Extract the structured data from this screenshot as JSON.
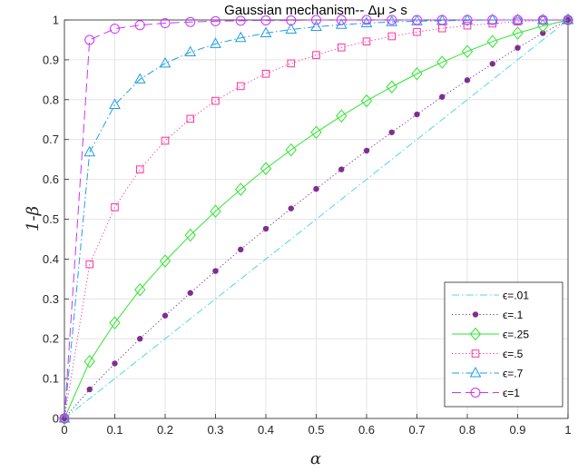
{
  "chart_data": {
    "type": "line",
    "title": "Gaussian mechanism-- Δμ > s",
    "xlabel": "α",
    "ylabel": "1-β",
    "xlim": [
      0,
      1
    ],
    "ylim": [
      0,
      1
    ],
    "xticks": [
      "0",
      "0.1",
      "0.2",
      "0.3",
      "0.4",
      "0.5",
      "0.6",
      "0.7",
      "0.8",
      "0.9",
      "1"
    ],
    "yticks": [
      "0",
      "0.1",
      "0.2",
      "0.3",
      "0.4",
      "0.5",
      "0.6",
      "0.7",
      "0.8",
      "0.9",
      "1"
    ],
    "grid": true,
    "legend_position": "bottom-right",
    "x": [
      0,
      0.05,
      0.1,
      0.15,
      0.2,
      0.25,
      0.3,
      0.35,
      0.4,
      0.45,
      0.5,
      0.55,
      0.6,
      0.65,
      0.7,
      0.75,
      0.8,
      0.85,
      0.9,
      0.95,
      1
    ],
    "series": [
      {
        "name": "ϵ=.01",
        "color": "#4dd8e6",
        "dash": "dashdot",
        "marker": "none",
        "values": [
          0,
          0.05,
          0.1,
          0.15,
          0.2,
          0.25,
          0.3,
          0.35,
          0.4,
          0.45,
          0.5,
          0.55,
          0.6,
          0.65,
          0.7,
          0.75,
          0.8,
          0.85,
          0.9,
          0.95,
          1
        ]
      },
      {
        "name": "ϵ=.1",
        "color": "#7e2f8e",
        "dash": "dotted",
        "marker": "dot",
        "values": [
          0,
          0.073,
          0.138,
          0.2,
          0.258,
          0.315,
          0.37,
          0.424,
          0.476,
          0.527,
          0.576,
          0.625,
          0.672,
          0.718,
          0.763,
          0.807,
          0.849,
          0.89,
          0.93,
          0.967,
          1
        ]
      },
      {
        "name": "ϵ=.25",
        "color": "#2ee62e",
        "dash": "solid",
        "marker": "diamond",
        "values": [
          0,
          0.143,
          0.24,
          0.323,
          0.395,
          0.46,
          0.52,
          0.575,
          0.627,
          0.674,
          0.718,
          0.759,
          0.797,
          0.832,
          0.865,
          0.894,
          0.921,
          0.946,
          0.967,
          0.985,
          1
        ]
      },
      {
        "name": "ϵ=.5",
        "color": "#ff3399",
        "dash": "dotted",
        "marker": "square",
        "values": [
          0,
          0.387,
          0.53,
          0.625,
          0.697,
          0.752,
          0.797,
          0.834,
          0.865,
          0.891,
          0.912,
          0.931,
          0.946,
          0.959,
          0.97,
          0.979,
          0.986,
          0.991,
          0.996,
          0.999,
          1
        ]
      },
      {
        "name": "ϵ=.7",
        "color": "#1f9ee6",
        "dash": "dashdot",
        "marker": "triangle",
        "values": [
          0,
          0.668,
          0.787,
          0.851,
          0.891,
          0.919,
          0.94,
          0.955,
          0.967,
          0.976,
          0.983,
          0.988,
          0.992,
          0.995,
          0.997,
          0.998,
          0.999,
          1,
          1,
          1,
          1
        ]
      },
      {
        "name": "ϵ=1",
        "color": "#cc33ff",
        "dash": "dashed",
        "marker": "circle",
        "values": [
          0,
          0.95,
          0.978,
          0.987,
          0.992,
          0.995,
          0.997,
          0.998,
          0.999,
          0.999,
          1,
          1,
          1,
          1,
          1,
          1,
          1,
          1,
          1,
          1,
          1
        ]
      }
    ]
  }
}
